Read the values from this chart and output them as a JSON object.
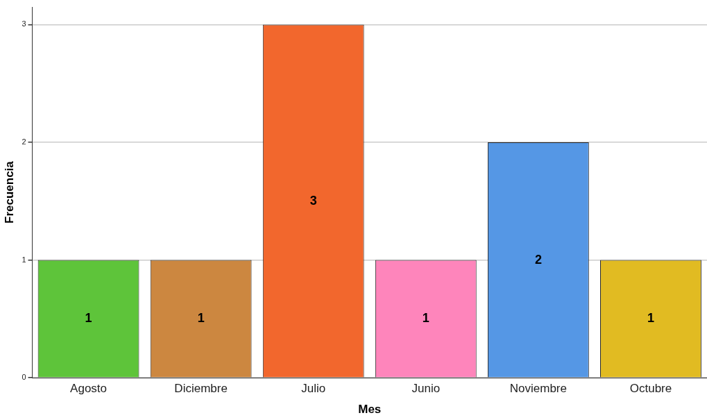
{
  "chart_data": {
    "type": "bar",
    "xlabel": "Mes",
    "ylabel": "Frecuencia",
    "categories": [
      "Agosto",
      "Diciembre",
      "Julio",
      "Junio",
      "Noviembre",
      "Octubre"
    ],
    "values": [
      1,
      1,
      3,
      1,
      2,
      1
    ],
    "colors": [
      "#5ec43a",
      "#cc8740",
      "#f2672d",
      "#fe85bb",
      "#5597e5",
      "#e1bb22"
    ],
    "ylim": [
      0,
      3.15
    ],
    "yticks": [
      0,
      1,
      2,
      3
    ],
    "grid": "y",
    "data_labels": true,
    "legend": false
  }
}
